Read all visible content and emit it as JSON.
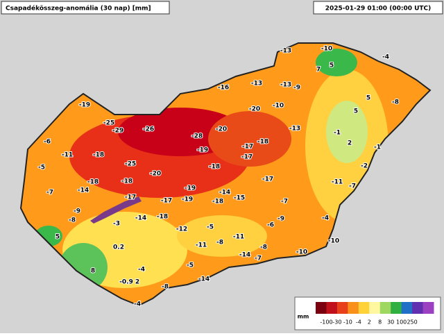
{
  "header": {
    "title": "Csapadékösszeg-anomália (30 nap) [mm]",
    "timestamp": "2025-01-29 01:00 (00:00 UTC)"
  },
  "stations": [
    -13,
    -10,
    -4,
    7,
    5,
    -13,
    -13,
    -9,
    -16,
    -8,
    -19,
    -20,
    -10,
    5,
    -25,
    -29,
    -26,
    -20,
    -13,
    -1,
    -28,
    -18,
    5,
    -6,
    -19,
    -17,
    2,
    -11,
    -18,
    -17,
    -1,
    -25,
    -5,
    -18,
    -2,
    -20,
    -18,
    -18,
    -17,
    -11,
    -7,
    -14,
    -7,
    -19,
    -14,
    -17,
    -17,
    -19,
    -18,
    -15,
    -7,
    -9,
    -8,
    -18,
    -14,
    -3,
    -4,
    -6,
    -9,
    -5,
    -12,
    -11,
    5,
    -10,
    -8,
    -11,
    0.2,
    -8,
    -10,
    -14,
    -7,
    -4,
    -5,
    8,
    -0.9,
    2,
    -14,
    -8,
    -4
  ],
  "legend": {
    "unit": "mm",
    "labels": [
      -100,
      -30,
      -10,
      -4,
      2,
      8,
      30,
      100,
      250
    ],
    "colors": [
      "#7a0010",
      "#c0101a",
      "#e8401a",
      "#f8901a",
      "#ffd23a",
      "#fff8a0",
      "#9ed860",
      "#30b040",
      "#2070c8",
      "#6030b0",
      "#9a40c0"
    ]
  }
}
